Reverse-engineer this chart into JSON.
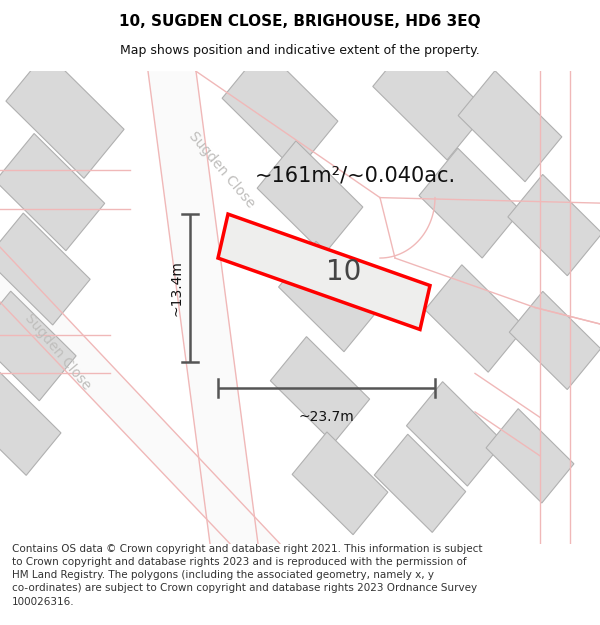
{
  "title": "10, SUGDEN CLOSE, BRIGHOUSE, HD6 3EQ",
  "subtitle": "Map shows position and indicative extent of the property.",
  "footer": "Contains OS data © Crown copyright and database right 2021. This information is subject to Crown copyright and database rights 2023 and is reproduced with the permission of HM Land Registry. The polygons (including the associated geometry, namely x, y co-ordinates) are subject to Crown copyright and database rights 2023 Ordnance Survey 100026316.",
  "area_label": "~161m²/~0.040ac.",
  "width_label": "~23.7m",
  "height_label": "~13.4m",
  "plot_number": "10",
  "map_bg": "#f0efed",
  "building_fill": "#d9d9d9",
  "building_edge": "#b0b0b0",
  "plot_fill": "#eeeeec",
  "plot_edge": "#ff0000",
  "road_color": "#fafafa",
  "road_label_color": "#c0bfbd",
  "dim_line_color": "#555555",
  "title_color": "#000000",
  "subtitle_color": "#111111",
  "footer_color": "#333333",
  "pink": "#f0b8b8",
  "title_fontsize": 11,
  "subtitle_fontsize": 9,
  "footer_fontsize": 7.5,
  "area_fontsize": 15,
  "plot_number_fontsize": 20,
  "road_label_fontsize": 10,
  "dim_fontsize": 10
}
